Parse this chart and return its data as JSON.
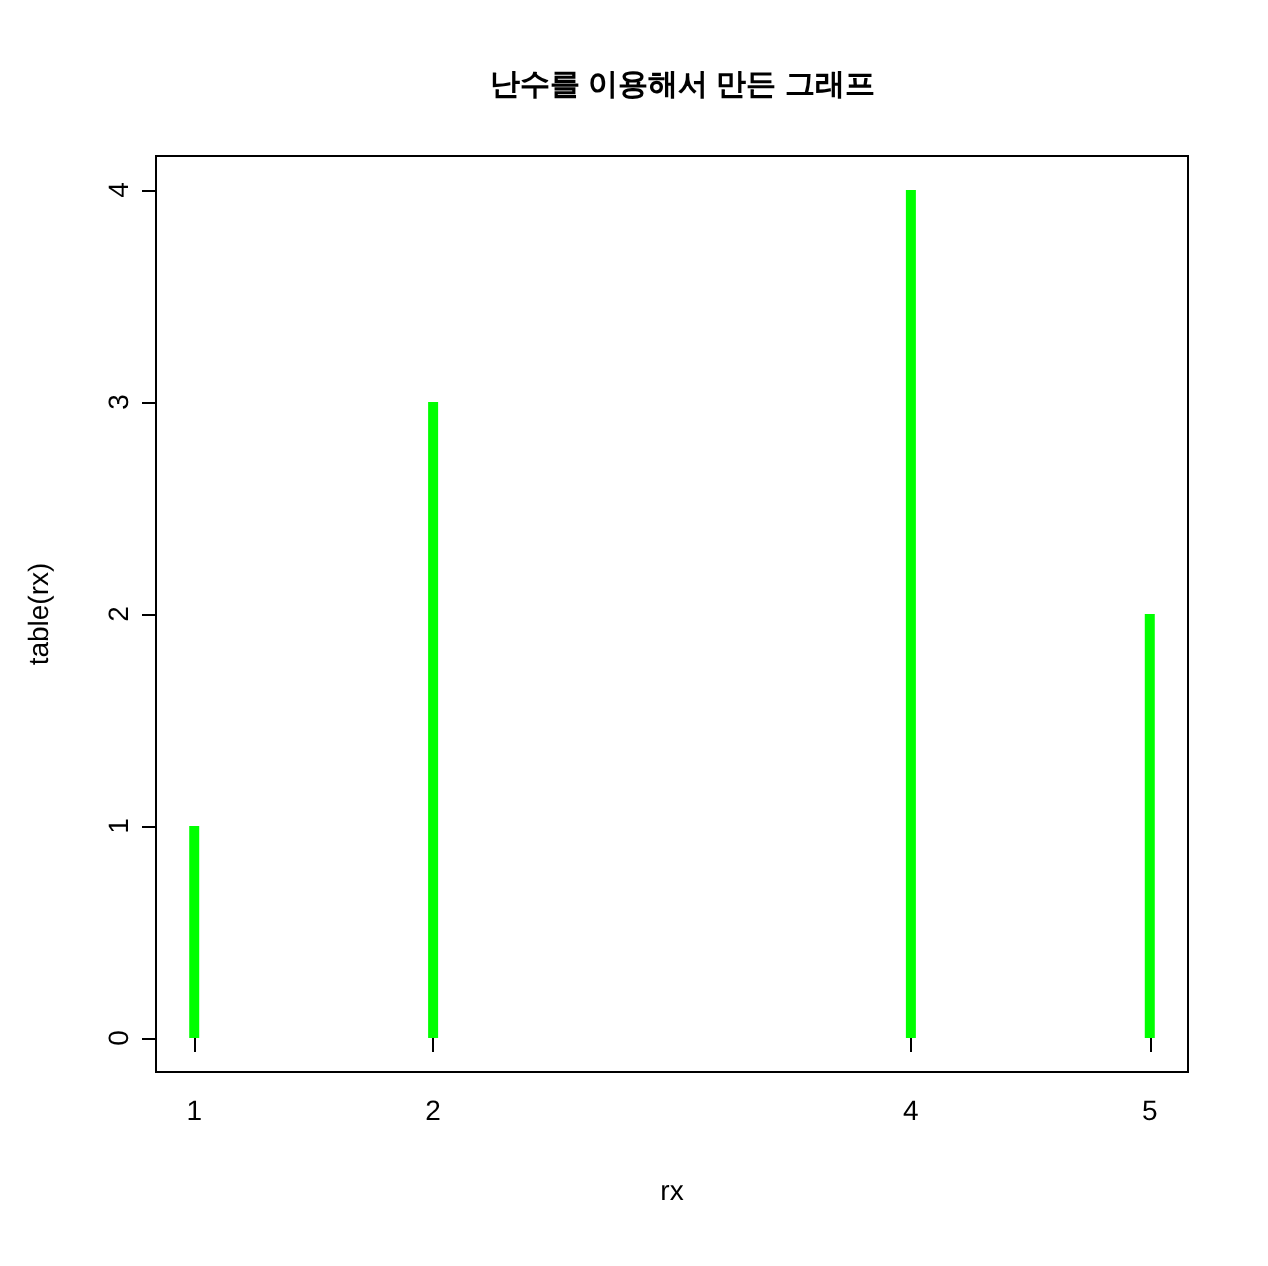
{
  "chart_data": {
    "type": "bar",
    "title": "난수를 이용해서 만든 그래프",
    "xlabel": "rx",
    "ylabel": "table(rx)",
    "x": [
      1,
      2,
      4,
      5
    ],
    "values": [
      1,
      3,
      4,
      2
    ],
    "color": "#00ff00",
    "xlim": [
      0.84,
      5.16
    ],
    "xticks": [
      1,
      2,
      4,
      5
    ],
    "ylim": [
      -0.16,
      4.16
    ],
    "yticks": [
      0,
      1,
      2,
      3,
      4
    ],
    "grid": false
  }
}
